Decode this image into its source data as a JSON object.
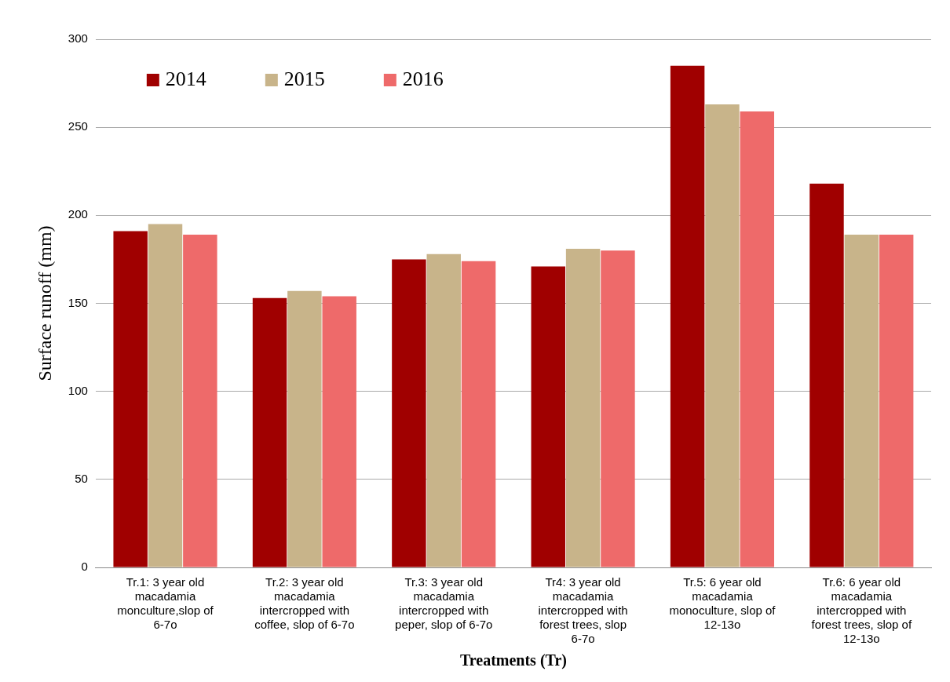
{
  "chart_data": {
    "type": "bar",
    "xlabel": "Treatments (Tr)",
    "ylabel": "Surface runoff (mm)",
    "categories": [
      "Tr.1: 3 year old macadamia monculture,slop of 6-7o",
      "Tr.2: 3 year old macadamia intercropped with coffee, slop of 6-7o",
      "Tr.3: 3 year old macadamia intercropped with peper, slop of 6-7o",
      "Tr4: 3 year old macadamia intercropped with forest trees, slop 6-7o",
      "Tr.5: 6 year old macadamia monoculture, slop of 12-13o",
      "Tr.6: 6 year old macadamia intercropped with forest trees, slop of 12-13o"
    ],
    "series": [
      {
        "name": "2014",
        "color": "#a00000",
        "values": [
          191,
          153,
          175,
          171,
          285,
          218
        ]
      },
      {
        "name": "2015",
        "color": "#c8b48a",
        "values": [
          195,
          157,
          178,
          181,
          263,
          189
        ]
      },
      {
        "name": "2016",
        "color": "#ee6a6a",
        "values": [
          189,
          154,
          174,
          180,
          259,
          189
        ]
      }
    ],
    "ylim": [
      0,
      300
    ],
    "yticks": [
      0,
      50,
      100,
      150,
      200,
      250,
      300
    ],
    "grid": "y",
    "legend": "top left"
  }
}
